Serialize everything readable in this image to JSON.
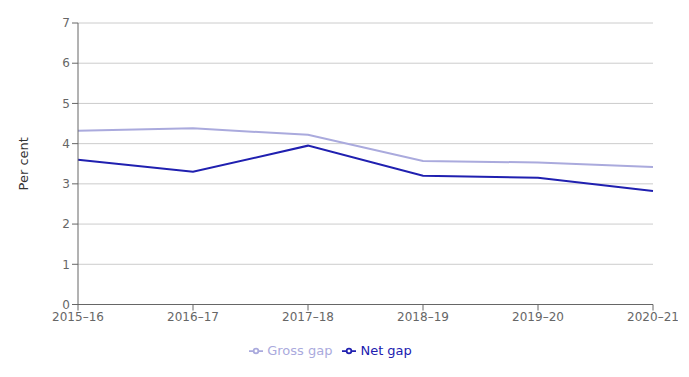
{
  "chart_data": {
    "type": "line",
    "categories": [
      "2015–16",
      "2016–17",
      "2017–18",
      "2018–19",
      "2019–20",
      "2020–21"
    ],
    "series": [
      {
        "name": "Net gap",
        "color": "#2020b0",
        "values": [
          3.6,
          3.3,
          3.95,
          3.2,
          3.15,
          2.82
        ]
      },
      {
        "name": "Gross gap",
        "color": "#aaaadd",
        "values": [
          4.32,
          4.38,
          4.22,
          3.57,
          3.53,
          3.42
        ]
      }
    ],
    "ylabel": "Per cent",
    "ylim": [
      0,
      7
    ],
    "yticks": [
      0,
      1,
      2,
      3,
      4,
      5,
      6,
      7
    ],
    "grid": true,
    "legend": "bottom"
  }
}
